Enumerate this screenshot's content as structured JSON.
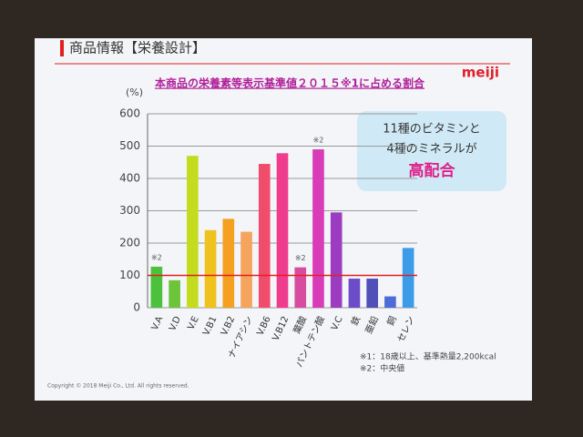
{
  "header": {
    "title": "商品情報【栄養設計】",
    "logo": "meiji"
  },
  "chart_data": {
    "type": "bar",
    "title": "本商品の栄養素等表示基準値２０１５※1に占める割合",
    "y_label": "(%)",
    "categories": [
      "V.A",
      "V.D",
      "V.E",
      "V.B1",
      "V.B2",
      "ナイアシン",
      "V.B6",
      "V.B12",
      "葉酸",
      "パントテン酸",
      "V.C",
      "鉄",
      "亜鉛",
      "銅",
      "セレン"
    ],
    "values": [
      127,
      85,
      470,
      240,
      275,
      235,
      445,
      478,
      125,
      490,
      295,
      90,
      90,
      35,
      185
    ],
    "colors": [
      "#4cc23c",
      "#6cc43a",
      "#c4dc1e",
      "#f0c21e",
      "#f4a020",
      "#f4a45c",
      "#f04c6c",
      "#f03c8c",
      "#d84ca0",
      "#d83cb8",
      "#9c3cc0",
      "#6c4cc8",
      "#5050b8",
      "#4c6cd8",
      "#3c9ce8"
    ],
    "value_notes": [
      "※2",
      null,
      null,
      null,
      null,
      null,
      null,
      null,
      "※2",
      "※2",
      null,
      null,
      null,
      null,
      null
    ],
    "reference_line": 100,
    "ylim": [
      0,
      600
    ],
    "yticks": [
      0,
      100,
      200,
      300,
      400,
      500,
      600
    ],
    "grid": true
  },
  "callout": {
    "lines": [
      "11種のビタミンと",
      "4種のミネラルが"
    ],
    "highlight": "高配合"
  },
  "footnotes": [
    "※1：18歳以上、基準熱量2,200kcal",
    "※2：中央値"
  ],
  "copyright": "Copyright © 2018 Meiji Co., Ltd. All rights reserved."
}
